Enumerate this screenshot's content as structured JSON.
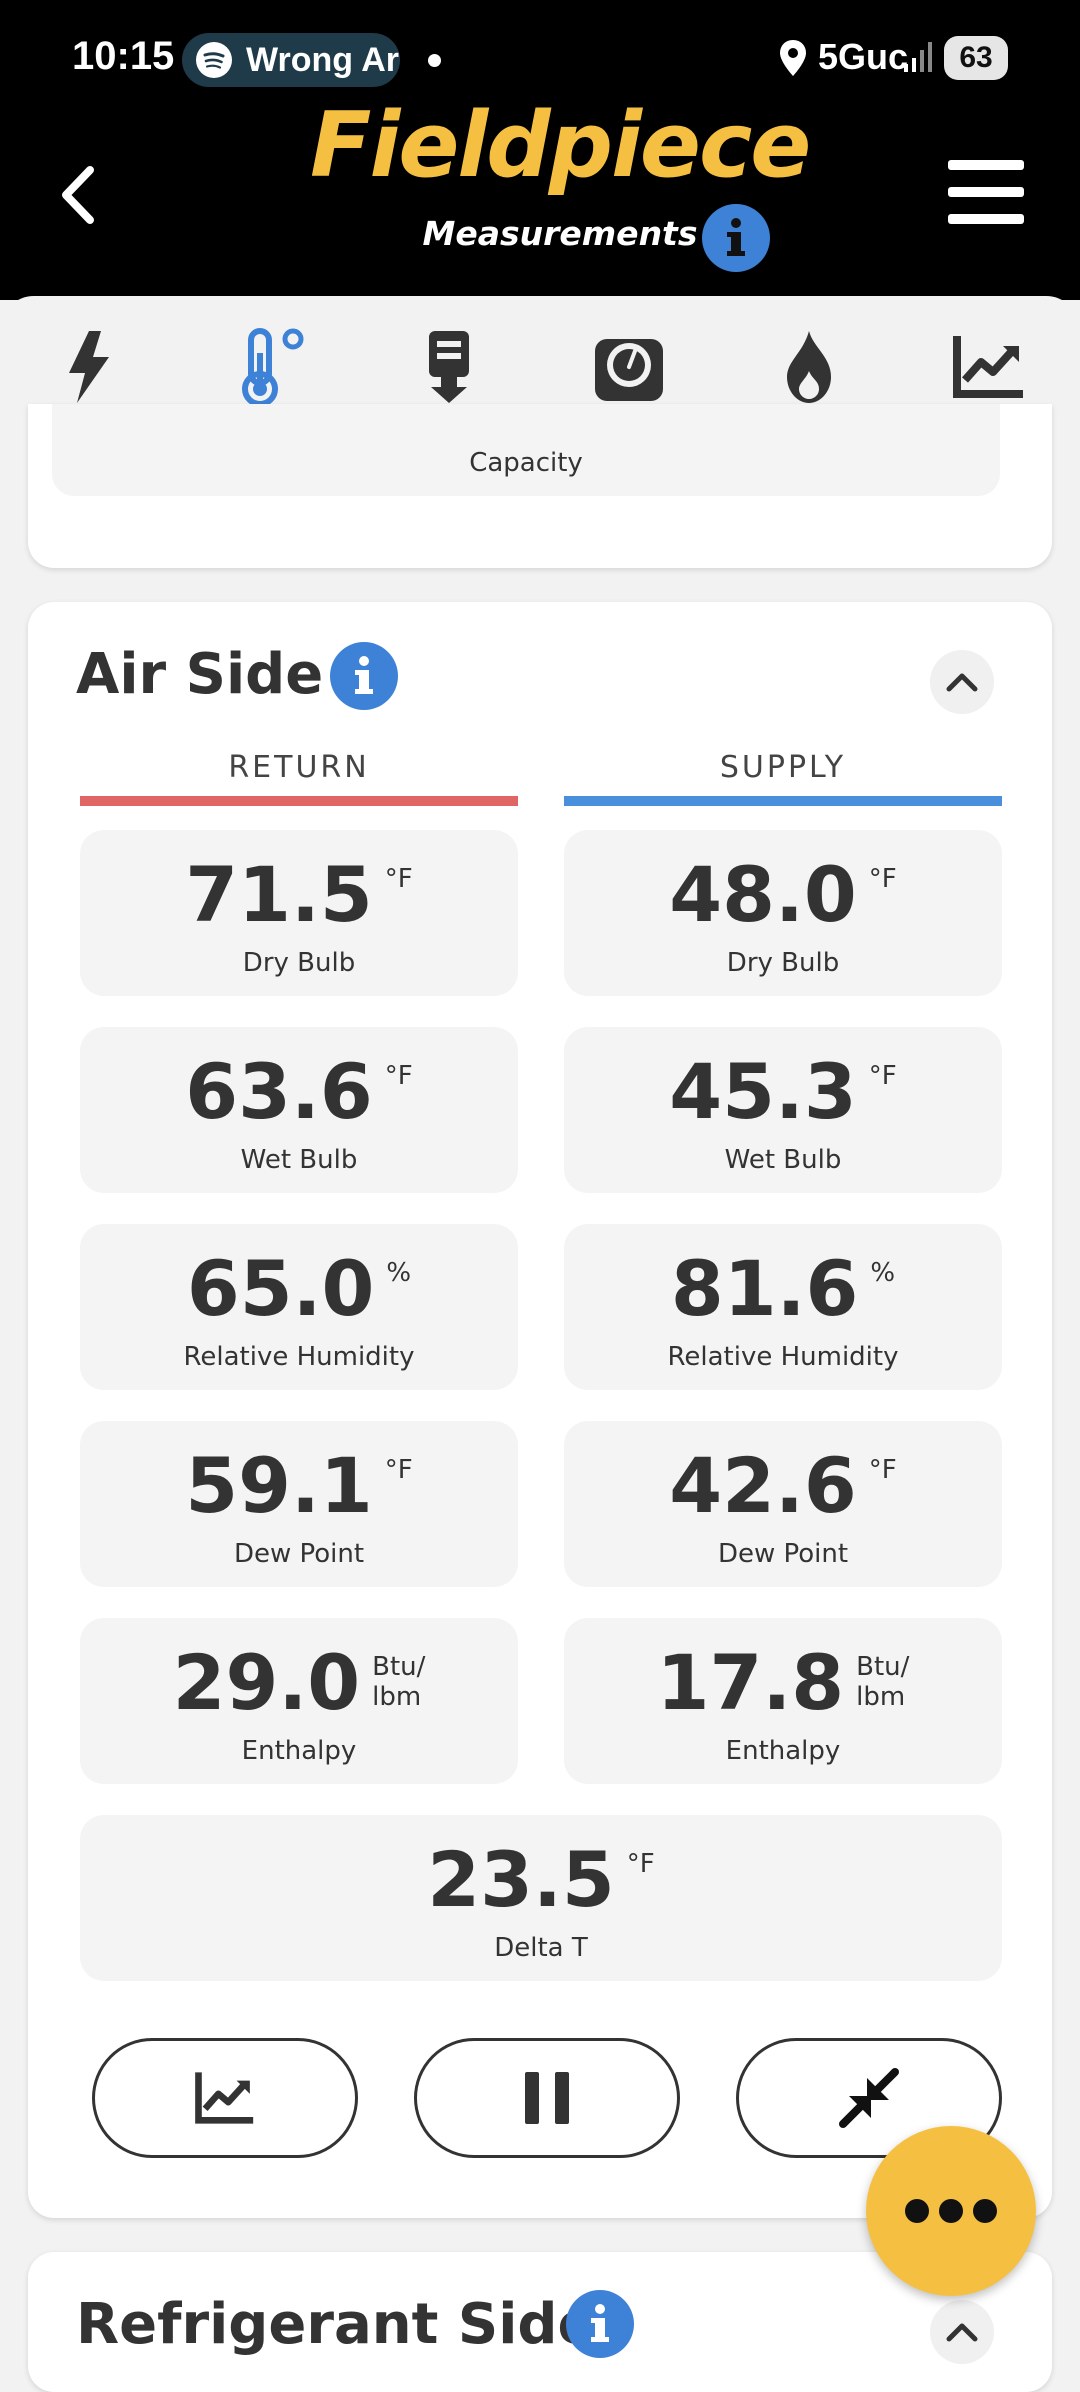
{
  "status_bar": {
    "time": "10:15",
    "now_playing": "Wrong Ar",
    "network": "5Guc",
    "battery": "63"
  },
  "header": {
    "brand": "Fieldpiece",
    "subtitle": "Measurements",
    "brand_color": "#f5c042"
  },
  "tabs": [
    {
      "icon": "lightning-icon",
      "active": false
    },
    {
      "icon": "thermometer-icon",
      "active": true
    },
    {
      "icon": "download-device-icon",
      "active": false
    },
    {
      "icon": "gauge-icon",
      "active": false
    },
    {
      "icon": "flame-icon",
      "active": false
    },
    {
      "icon": "chart-icon",
      "active": false
    }
  ],
  "capacity_card": {
    "label": "Capacity"
  },
  "air_side": {
    "title": "Air Side",
    "return_label": "RETURN",
    "supply_label": "SUPPLY",
    "return_color": "#e06666",
    "supply_color": "#4a8fdc",
    "return": [
      {
        "value": "71.5",
        "unit": "°F",
        "label": "Dry Bulb"
      },
      {
        "value": "63.6",
        "unit": "°F",
        "label": "Wet Bulb"
      },
      {
        "value": "65.0",
        "unit": "%",
        "label": "Relative Humidity"
      },
      {
        "value": "59.1",
        "unit": "°F",
        "label": "Dew Point"
      },
      {
        "value": "29.0",
        "unit": "Btu/\nlbm",
        "label": "Enthalpy"
      }
    ],
    "supply": [
      {
        "value": "48.0",
        "unit": "°F",
        "label": "Dry Bulb"
      },
      {
        "value": "45.3",
        "unit": "°F",
        "label": "Wet Bulb"
      },
      {
        "value": "81.6",
        "unit": "%",
        "label": "Relative Humidity"
      },
      {
        "value": "42.6",
        "unit": "°F",
        "label": "Dew Point"
      },
      {
        "value": "17.8",
        "unit": "Btu/\nlbm",
        "label": "Enthalpy"
      }
    ],
    "delta": {
      "value": "23.5",
      "unit": "°F",
      "label": "Delta T"
    }
  },
  "refrigerant_side": {
    "title": "Refrigerant Side"
  }
}
